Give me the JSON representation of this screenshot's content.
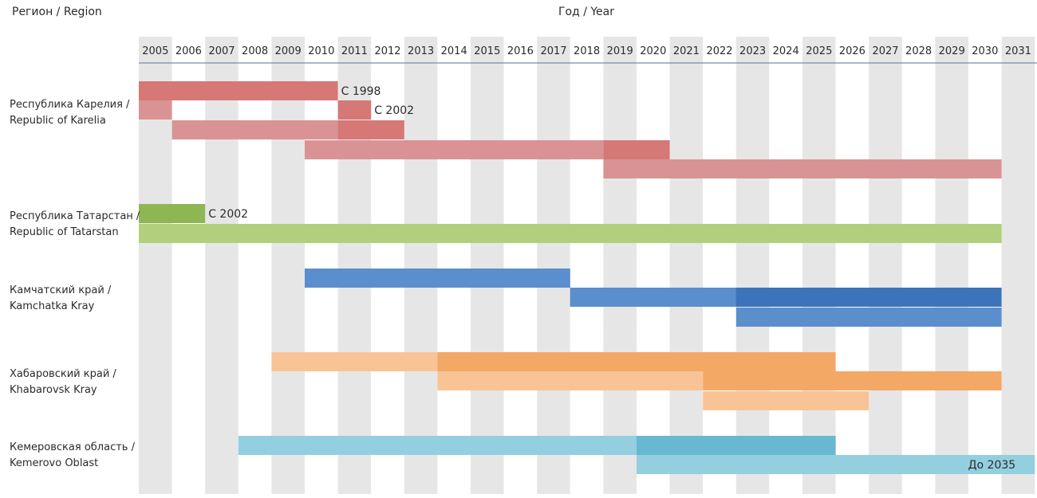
{
  "headers": {
    "region": "Регион / Region",
    "year": "Год / Year"
  },
  "chart_data": {
    "type": "gantt",
    "years": [
      2005,
      2006,
      2007,
      2008,
      2009,
      2010,
      2011,
      2012,
      2013,
      2014,
      2015,
      2016,
      2017,
      2018,
      2019,
      2020,
      2021,
      2022,
      2023,
      2024,
      2025,
      2026,
      2027,
      2028,
      2029,
      2030,
      2031
    ],
    "grid": "alternating vertical column bands",
    "regions": [
      {
        "label_ru": "Республика Карелия /",
        "label_en": "Republic of Karelia",
        "color_dark": "#d67876",
        "color_light": "#da9394",
        "bars": [
          {
            "start": 2005,
            "end": 2010,
            "tone": "dark",
            "label": "С 1998"
          },
          {
            "start": 2005,
            "end": 2005,
            "tone": "light",
            "label": ""
          },
          {
            "start": 2006,
            "end": 2010,
            "tone": "light",
            "label": ""
          },
          {
            "start": 2011,
            "end": 2011,
            "tone": "dark",
            "label": "С 2002"
          },
          {
            "start": 2011,
            "end": 2012,
            "tone": "dark",
            "label": ""
          },
          {
            "start": 2010,
            "end": 2018,
            "tone": "light",
            "label": ""
          },
          {
            "start": 2019,
            "end": 2020,
            "tone": "dark",
            "label": ""
          },
          {
            "start": 2019,
            "end": 2030,
            "tone": "light",
            "label": ""
          }
        ]
      },
      {
        "label_ru": "Республика Татарстан /",
        "label_en": "Republic of Tatarstan",
        "color_dark": "#8eb753",
        "color_light": "#b1cf7c",
        "bars": [
          {
            "start": 2005,
            "end": 2006,
            "tone": "dark",
            "label": "С 2002"
          },
          {
            "start": 2005,
            "end": 2030,
            "tone": "light",
            "label": ""
          }
        ]
      },
      {
        "label_ru": "Камчатский край /",
        "label_en": "Kamchatka Kray",
        "color_dark": "#3c74ba",
        "color_light": "#5b8ecc",
        "bars": [
          {
            "start": 2010,
            "end": 2017,
            "tone": "light",
            "label": ""
          },
          {
            "start": 2018,
            "end": 2025,
            "tone": "dark",
            "label": ""
          },
          {
            "start": 2018,
            "end": 2022,
            "tone": "light",
            "label": ""
          },
          {
            "start": 2023,
            "end": 2030,
            "tone": "dark",
            "label": ""
          },
          {
            "start": 2023,
            "end": 2030,
            "tone": "light",
            "label": ""
          }
        ]
      },
      {
        "label_ru": "Хабаровский край /",
        "label_en": "Khabarovsk Kray",
        "color_dark": "#f3a866",
        "color_light": "#f8c496",
        "bars": [
          {
            "start": 2009,
            "end": 2013,
            "tone": "light",
            "label": ""
          },
          {
            "start": 2014,
            "end": 2025,
            "tone": "dark",
            "label": ""
          },
          {
            "start": 2014,
            "end": 2021,
            "tone": "light",
            "label": ""
          },
          {
            "start": 2022,
            "end": 2030,
            "tone": "dark",
            "label": ""
          },
          {
            "start": 2022,
            "end": 2026,
            "tone": "light",
            "label": ""
          }
        ]
      },
      {
        "label_ru": "Кемеровская область /",
        "label_en": "Kemerovo Oblast",
        "color_dark": "#67b8d0",
        "color_light": "#93cfdf",
        "bars": [
          {
            "start": 2008,
            "end": 2019,
            "tone": "light",
            "label": ""
          },
          {
            "start": 2020,
            "end": 2025,
            "tone": "dark",
            "label": ""
          },
          {
            "start": 2020,
            "end": 2031,
            "tone": "light",
            "label": "До 2035"
          }
        ]
      }
    ]
  }
}
